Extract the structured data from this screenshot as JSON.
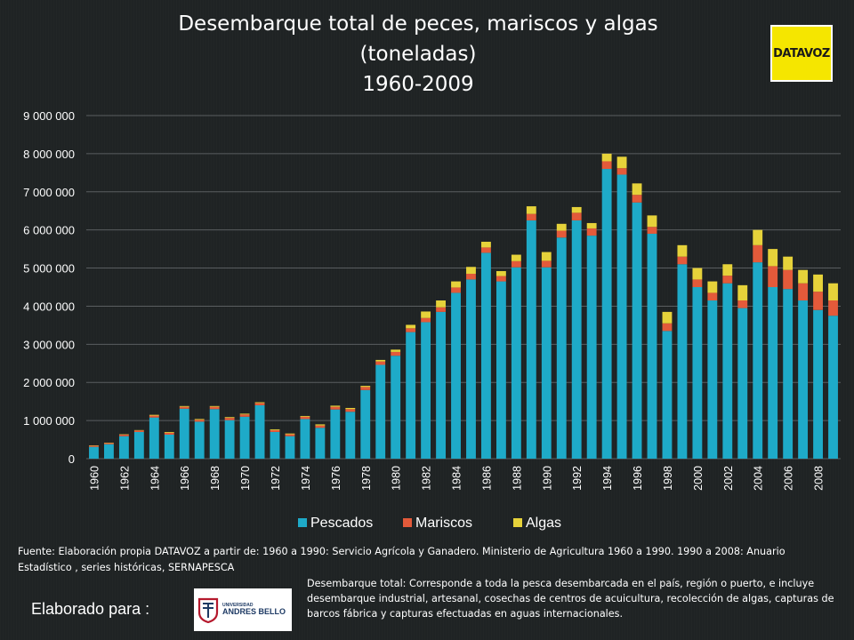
{
  "title": {
    "line1": "Desembarque total de peces, mariscos y algas",
    "line2": "(toneladas)",
    "line3": "1960-2009"
  },
  "logo_text": "DATAVOZ",
  "source_text": "Fuente: Elaboración propia DATAVOZ a partir de: 1960 a 1990: Servicio Agrícola y Ganadero. Ministerio de Agricultura 1960 a 1990. 1990 a 2008: Anuario Estadístico , series históricas, SERNAPESCA",
  "note_text": "Desembarque total: Corresponde a toda la pesca desembarcada en el país, región o puerto, e incluye desembarque industrial, artesanal, cosechas de centros de acuicultura, recolección de algas, capturas de barcos fábrica y capturas efectuadas en aguas internacionales.",
  "made_for_text": "Elaborado para :",
  "university_logo": {
    "line1": "UNIVERSIDAD",
    "line2": "ANDRES BELLO"
  },
  "colors": {
    "pescados": "#1eaac8",
    "mariscos": "#e35a3a",
    "algas": "#e6d23a",
    "grid": "#5a5e60",
    "background": "#1f2324"
  },
  "chart_data": {
    "type": "bar",
    "stacked": true,
    "title": "Desembarque total de peces, mariscos y algas (toneladas) 1960-2009",
    "xlabel": "",
    "ylabel": "",
    "ylim": [
      0,
      9000000
    ],
    "yticks": [
      0,
      1000000,
      2000000,
      3000000,
      4000000,
      5000000,
      6000000,
      7000000,
      8000000,
      9000000
    ],
    "ytick_labels": [
      "0",
      "1 000 000",
      "2 000 000",
      "3 000 000",
      "4 000 000",
      "5 000 000",
      "6 000 000",
      "7 000 000",
      "8 000 000",
      "9 000 000"
    ],
    "x_tick_labels": [
      "1960",
      "1962",
      "1964",
      "1966",
      "1968",
      "1970",
      "1972",
      "1974",
      "1976",
      "1978",
      "1980",
      "1982",
      "1984",
      "1986",
      "1988",
      "1990",
      "1992",
      "1994",
      "1996",
      "1998",
      "2000",
      "2002",
      "2004",
      "2006",
      "2008"
    ],
    "grid": true,
    "legend_position": "bottom",
    "categories": [
      "1960",
      "1961",
      "1962",
      "1963",
      "1964",
      "1965",
      "1966",
      "1967",
      "1968",
      "1969",
      "1970",
      "1971",
      "1972",
      "1973",
      "1974",
      "1975",
      "1976",
      "1977",
      "1978",
      "1979",
      "1980",
      "1981",
      "1982",
      "1983",
      "1984",
      "1985",
      "1986",
      "1987",
      "1988",
      "1989",
      "1990",
      "1991",
      "1992",
      "1993",
      "1994",
      "1995",
      "1996",
      "1997",
      "1998",
      "1999",
      "2000",
      "2001",
      "2002",
      "2003",
      "2004",
      "2005",
      "2006",
      "2007",
      "2008",
      "2009"
    ],
    "series": [
      {
        "name": "Pescados",
        "values": [
          310000,
          380000,
          590000,
          700000,
          1080000,
          630000,
          1310000,
          970000,
          1300000,
          1010000,
          1100000,
          1400000,
          700000,
          590000,
          1040000,
          810000,
          1290000,
          1230000,
          1800000,
          2460000,
          2700000,
          3320000,
          3580000,
          3850000,
          4350000,
          4700000,
          5400000,
          4650000,
          5020000,
          6250000,
          5020000,
          5800000,
          6250000,
          5850000,
          7600000,
          7450000,
          6720000,
          5900000,
          3350000,
          5100000,
          4500000,
          4150000,
          4600000,
          3950000,
          5150000,
          4500000,
          4450000,
          4150000,
          3900000,
          3750000
        ]
      },
      {
        "name": "Mariscos",
        "values": [
          30000,
          30000,
          40000,
          40000,
          50000,
          50000,
          50000,
          50000,
          60000,
          60000,
          60000,
          60000,
          50000,
          50000,
          60000,
          60000,
          70000,
          70000,
          80000,
          90000,
          100000,
          100000,
          110000,
          120000,
          140000,
          150000,
          140000,
          140000,
          160000,
          170000,
          170000,
          180000,
          200000,
          190000,
          200000,
          170000,
          200000,
          180000,
          200000,
          200000,
          200000,
          200000,
          200000,
          200000,
          450000,
          550000,
          500000,
          450000,
          480000,
          400000
        ]
      },
      {
        "name": "Algas",
        "values": [
          10000,
          10000,
          10000,
          10000,
          20000,
          20000,
          20000,
          20000,
          20000,
          20000,
          20000,
          20000,
          20000,
          20000,
          20000,
          30000,
          30000,
          30000,
          30000,
          40000,
          60000,
          90000,
          170000,
          180000,
          160000,
          180000,
          150000,
          130000,
          170000,
          200000,
          230000,
          180000,
          150000,
          140000,
          200000,
          300000,
          300000,
          300000,
          300000,
          300000,
          300000,
          300000,
          300000,
          400000,
          400000,
          450000,
          350000,
          350000,
          450000,
          450000
        ]
      }
    ]
  }
}
